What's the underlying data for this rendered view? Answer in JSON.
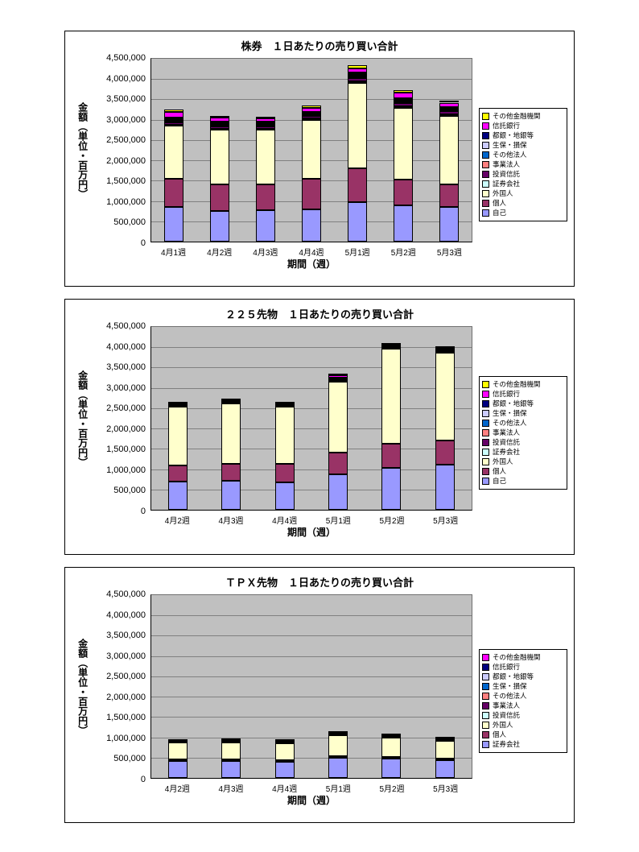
{
  "page": {
    "background": "#ffffff",
    "plot_background": "#c0c0c0"
  },
  "chart_data": [
    {
      "type": "bar",
      "stacked": true,
      "title": "株券　１日あたりの売り買い合計",
      "xlabel": "期間（週）",
      "ylabel": "金額（単位・百万円）",
      "ymax": 4500000,
      "ystep": 500000,
      "ylim": [
        0,
        4500000
      ],
      "grid": true,
      "legend_position": "right",
      "categories": [
        "4月1週",
        "4月2週",
        "4月3週",
        "4月4週",
        "5月1週",
        "5月2週",
        "5月3週"
      ],
      "series": [
        {
          "name": "自己",
          "color": "#9999FF",
          "values": [
            850000,
            750000,
            780000,
            800000,
            980000,
            900000,
            850000
          ]
        },
        {
          "name": "個人",
          "color": "#993366",
          "values": [
            700000,
            650000,
            620000,
            750000,
            820000,
            620000,
            550000
          ]
        },
        {
          "name": "外国人",
          "color": "#FFFFCC",
          "values": [
            1300000,
            1350000,
            1350000,
            1450000,
            2100000,
            1780000,
            1700000
          ]
        },
        {
          "name": "証券会社",
          "color": "#CCFFFF",
          "values": [
            30000,
            30000,
            30000,
            30000,
            40000,
            40000,
            40000
          ]
        },
        {
          "name": "投資信託",
          "color": "#660066",
          "values": [
            60000,
            60000,
            60000,
            60000,
            80000,
            70000,
            70000
          ]
        },
        {
          "name": "事業法人",
          "color": "#FF8080",
          "values": [
            30000,
            30000,
            30000,
            30000,
            40000,
            30000,
            30000
          ]
        },
        {
          "name": "その他法人",
          "color": "#0066CC",
          "values": [
            20000,
            20000,
            20000,
            20000,
            30000,
            20000,
            20000
          ]
        },
        {
          "name": "生保・損保",
          "color": "#CCCCFF",
          "values": [
            30000,
            30000,
            30000,
            30000,
            40000,
            30000,
            30000
          ]
        },
        {
          "name": "都銀・地銀等",
          "color": "#000080",
          "values": [
            30000,
            30000,
            30000,
            30000,
            40000,
            30000,
            30000
          ]
        },
        {
          "name": "信託銀行",
          "color": "#FF00FF",
          "values": [
            150000,
            100000,
            80000,
            100000,
            100000,
            150000,
            100000
          ]
        },
        {
          "name": "その他金融機関",
          "color": "#FFFF00",
          "values": [
            50000,
            50000,
            30000,
            50000,
            80000,
            50000,
            50000
          ]
        }
      ]
    },
    {
      "type": "bar",
      "stacked": true,
      "title": "２２５先物　１日あたりの売り買い合計",
      "xlabel": "期間（週）",
      "ylabel": "金額（単位・百万円）",
      "ymax": 4500000,
      "ystep": 500000,
      "ylim": [
        0,
        4500000
      ],
      "grid": true,
      "legend_position": "right",
      "categories": [
        "4月2週",
        "4月3週",
        "4月4週",
        "5月1週",
        "5月2週",
        "5月3週"
      ],
      "series": [
        {
          "name": "自己",
          "color": "#9999FF",
          "values": [
            700000,
            720000,
            680000,
            880000,
            1030000,
            1120000
          ]
        },
        {
          "name": "個人",
          "color": "#993366",
          "values": [
            400000,
            420000,
            450000,
            520000,
            600000,
            580000
          ]
        },
        {
          "name": "外国人",
          "color": "#FFFFCC",
          "values": [
            1430000,
            1470000,
            1400000,
            1760000,
            2330000,
            2160000
          ]
        },
        {
          "name": "証券会社",
          "color": "#CCFFFF",
          "values": [
            10000,
            10000,
            10000,
            10000,
            10000,
            10000
          ]
        },
        {
          "name": "投資信託",
          "color": "#660066",
          "values": [
            20000,
            20000,
            20000,
            20000,
            20000,
            20000
          ]
        },
        {
          "name": "事業法人",
          "color": "#FF8080",
          "values": [
            10000,
            10000,
            10000,
            10000,
            10000,
            10000
          ]
        },
        {
          "name": "その他法人",
          "color": "#0066CC",
          "values": [
            10000,
            10000,
            10000,
            10000,
            10000,
            10000
          ]
        },
        {
          "name": "生保・損保",
          "color": "#CCCCFF",
          "values": [
            10000,
            10000,
            10000,
            20000,
            10000,
            20000
          ]
        },
        {
          "name": "都銀・地銀等",
          "color": "#000080",
          "values": [
            10000,
            10000,
            10000,
            20000,
            30000,
            40000
          ]
        },
        {
          "name": "信託銀行",
          "color": "#FF00FF",
          "values": [
            10000,
            10000,
            10000,
            70000,
            10000,
            20000
          ]
        },
        {
          "name": "その他金融機関",
          "color": "#FFFF00",
          "values": [
            10000,
            10000,
            10000,
            30000,
            20000,
            20000
          ]
        }
      ]
    },
    {
      "type": "bar",
      "stacked": true,
      "title": "ＴＰＸ先物　１日あたりの売り買い合計",
      "xlabel": "期間（週）",
      "ylabel": "金額（単位・百万円）",
      "ymax": 4500000,
      "ystep": 500000,
      "ylim": [
        0,
        4500000
      ],
      "grid": true,
      "legend_position": "right",
      "categories": [
        "4月2週",
        "4月3週",
        "4月4週",
        "5月1週",
        "5月2週",
        "5月3週"
      ],
      "series": [
        {
          "name": "証券会社",
          "color": "#9999FF",
          "values": [
            420000,
            420000,
            400000,
            500000,
            470000,
            440000
          ]
        },
        {
          "name": "個人",
          "color": "#993366",
          "values": [
            30000,
            30000,
            30000,
            40000,
            40000,
            30000
          ]
        },
        {
          "name": "外国人",
          "color": "#FFFFCC",
          "values": [
            420000,
            430000,
            430000,
            520000,
            480000,
            440000
          ]
        },
        {
          "name": "投資信託",
          "color": "#CCFFFF",
          "values": [
            10000,
            10000,
            10000,
            10000,
            10000,
            10000
          ]
        },
        {
          "name": "事業法人",
          "color": "#660066",
          "values": [
            10000,
            10000,
            10000,
            10000,
            10000,
            10000
          ]
        },
        {
          "name": "その他法人",
          "color": "#FF8080",
          "values": [
            10000,
            10000,
            10000,
            10000,
            10000,
            10000
          ]
        },
        {
          "name": "生保・損保",
          "color": "#0066CC",
          "values": [
            10000,
            10000,
            10000,
            10000,
            10000,
            10000
          ]
        },
        {
          "name": "都銀・地銀等",
          "color": "#CCCCFF",
          "values": [
            10000,
            10000,
            10000,
            20000,
            20000,
            20000
          ]
        },
        {
          "name": "信託銀行",
          "color": "#000080",
          "values": [
            10000,
            10000,
            10000,
            10000,
            10000,
            10000
          ]
        },
        {
          "name": "その他金融機関",
          "color": "#FF00FF",
          "values": [
            0,
            0,
            0,
            0,
            0,
            0
          ]
        }
      ]
    }
  ]
}
